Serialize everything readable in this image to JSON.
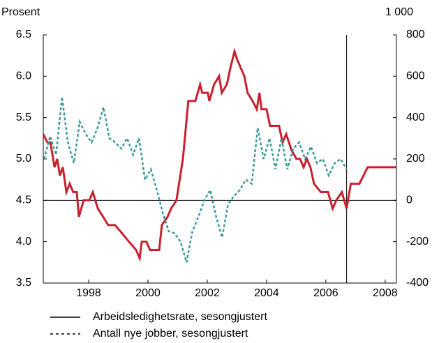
{
  "chart_data": {
    "type": "line",
    "y_label": "Prosent",
    "y2_label": "1 000",
    "xlim": [
      1996.47,
      2008.38
    ],
    "xticks": [
      1998,
      2000,
      2002,
      2004,
      2006,
      2008
    ],
    "ylim": [
      3.5,
      6.5
    ],
    "yticks": [
      3.5,
      {
        "value": 4,
        "label": "4.0"
      },
      4.5,
      {
        "value": 5,
        "label": "5.0"
      },
      5.5,
      {
        "value": 6,
        "label": "6.0"
      },
      6.5
    ],
    "y2lim": [
      -400,
      800
    ],
    "y2ticks": [
      -400,
      -200,
      0,
      200,
      400,
      600,
      800
    ],
    "hline": 4.5,
    "vline": 2006.7,
    "series": [
      {
        "name": "Arbeidsledighetsrate, sesongjustert",
        "color": "#c8202f",
        "dash": false,
        "x": [
          1996.47,
          1996.61,
          1996.71,
          1996.85,
          1996.94,
          1997.03,
          1997.13,
          1997.25,
          1997.36,
          1997.48,
          1997.6,
          1997.67,
          1997.83,
          1998.02,
          1998.14,
          1998.31,
          1998.49,
          1998.66,
          1998.89,
          1999.13,
          1999.36,
          1999.6,
          1999.72,
          1999.79,
          1999.95,
          2000.07,
          2000.38,
          2000.47,
          2000.66,
          2000.78,
          2000.96,
          2001.18,
          2001.36,
          2001.6,
          2001.76,
          2001.83,
          2002.02,
          2002.07,
          2002.23,
          2002.4,
          2002.49,
          2002.66,
          2002.78,
          2002.92,
          2003.01,
          2003.13,
          2003.25,
          2003.36,
          2003.53,
          2003.67,
          2003.76,
          2003.83,
          2004.0,
          2004.12,
          2004.42,
          2004.54,
          2004.66,
          2004.85,
          2005.01,
          2005.13,
          2005.25,
          2005.36,
          2005.48,
          2005.6,
          2005.83,
          2006.07,
          2006.23,
          2006.35,
          2006.54,
          2006.7,
          2006.84,
          2007.01,
          2007.13,
          2007.41,
          2008.38
        ],
        "values": [
          5.3,
          5.2,
          5.2,
          4.9,
          5.0,
          4.8,
          4.9,
          4.6,
          4.7,
          4.6,
          4.6,
          4.3,
          4.5,
          4.5,
          4.6,
          4.4,
          4.3,
          4.2,
          4.2,
          4.1,
          4.0,
          3.9,
          3.8,
          4.0,
          4.0,
          3.9,
          3.9,
          4.2,
          4.3,
          4.4,
          4.5,
          5.0,
          5.7,
          5.7,
          5.9,
          5.8,
          5.8,
          5.7,
          5.9,
          6.0,
          5.8,
          5.9,
          6.1,
          6.3,
          6.2,
          6.1,
          6.0,
          5.8,
          5.7,
          5.6,
          5.8,
          5.6,
          5.6,
          5.4,
          5.4,
          5.2,
          5.3,
          5.1,
          5.0,
          5.0,
          4.9,
          5.0,
          4.9,
          4.7,
          4.6,
          4.6,
          4.4,
          4.5,
          4.6,
          4.4,
          4.7,
          4.7,
          4.7,
          4.9,
          4.9
        ]
      },
      {
        "name": "Antall nye jobber, sesongjustert",
        "color": "#3a9a9a",
        "dash": true,
        "axis": "y2",
        "x": [
          1996.5,
          1996.7,
          1996.9,
          1997.1,
          1997.3,
          1997.5,
          1997.7,
          1997.9,
          1998.1,
          1998.3,
          1998.5,
          1998.7,
          1998.9,
          1999.1,
          1999.3,
          1999.5,
          1999.7,
          1999.9,
          2000.1,
          2000.3,
          2000.5,
          2000.7,
          2000.9,
          2001.1,
          2001.3,
          2001.5,
          2001.7,
          2001.9,
          2002.1,
          2002.3,
          2002.5,
          2002.7,
          2002.9,
          2003.1,
          2003.3,
          2003.5,
          2003.7,
          2003.9,
          2004.1,
          2004.3,
          2004.5,
          2004.7,
          2004.9,
          2005.1,
          2005.3,
          2005.5,
          2005.7,
          2005.9,
          2006.1,
          2006.3,
          2006.5,
          2006.7
        ],
        "values": [
          200,
          310,
          220,
          500,
          280,
          180,
          380,
          320,
          280,
          350,
          450,
          300,
          280,
          250,
          300,
          220,
          300,
          100,
          150,
          50,
          -60,
          -150,
          -160,
          -200,
          -300,
          -150,
          -80,
          0,
          50,
          -80,
          -180,
          -20,
          20,
          50,
          100,
          80,
          350,
          200,
          300,
          150,
          300,
          150,
          250,
          280,
          200,
          260,
          180,
          200,
          120,
          180,
          200,
          150
        ]
      }
    ]
  }
}
